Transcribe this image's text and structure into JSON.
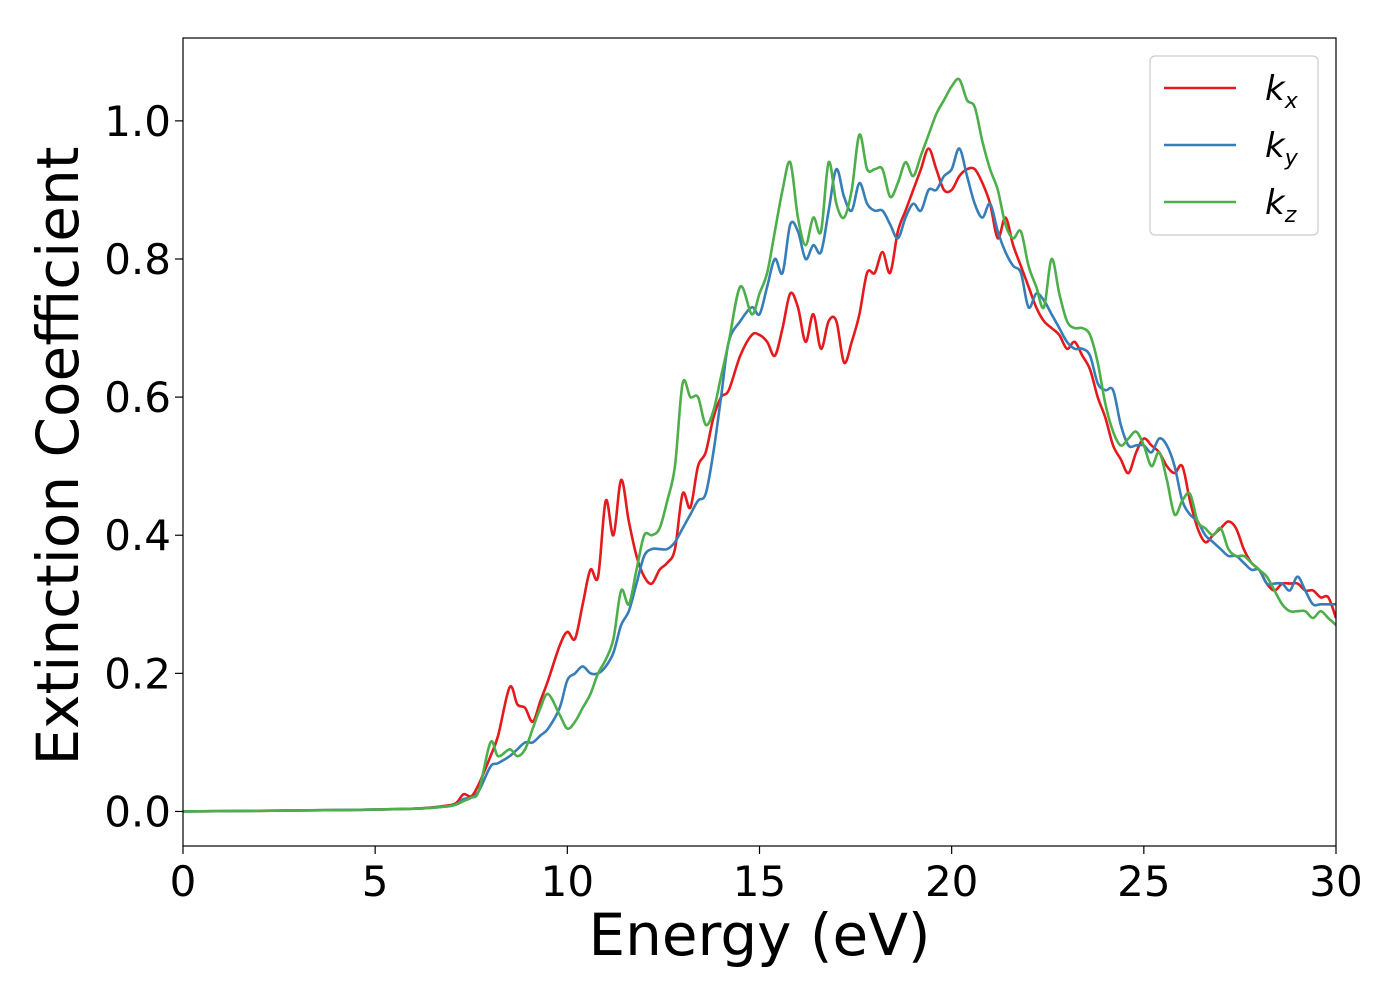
{
  "chart_data": {
    "type": "line",
    "title": "",
    "xlabel": "Energy (eV)",
    "ylabel": "Extinction Coefficient",
    "xlim": [
      0,
      30
    ],
    "ylim": [
      -0.05,
      1.12
    ],
    "xticks": [
      0,
      5,
      10,
      15,
      20,
      25,
      30
    ],
    "xtick_labels": [
      "0",
      "5",
      "10",
      "15",
      "20",
      "25",
      "30"
    ],
    "yticks": [
      0.0,
      0.2,
      0.4,
      0.6,
      0.8,
      1.0
    ],
    "ytick_labels": [
      "0.0",
      "0.2",
      "0.4",
      "0.6",
      "0.8",
      "1.0"
    ],
    "grid": false,
    "legend_position": "top-right",
    "series": [
      {
        "name": "k",
        "subscript": "x",
        "color": "#e41a1c",
        "x": [
          0,
          2,
          4,
          6,
          6.8,
          7.1,
          7.3,
          7.5,
          7.7,
          8.0,
          8.2,
          8.5,
          8.7,
          8.9,
          9.1,
          9.3,
          9.5,
          9.8,
          10.0,
          10.2,
          10.4,
          10.6,
          10.8,
          11.0,
          11.2,
          11.4,
          11.6,
          11.8,
          12.0,
          12.2,
          12.4,
          12.6,
          12.8,
          13.0,
          13.2,
          13.4,
          13.6,
          13.8,
          14.0,
          14.2,
          14.5,
          14.8,
          15.0,
          15.2,
          15.4,
          15.6,
          15.8,
          16.0,
          16.2,
          16.4,
          16.6,
          16.8,
          17.0,
          17.2,
          17.4,
          17.6,
          17.8,
          18.0,
          18.2,
          18.4,
          18.6,
          18.8,
          19.0,
          19.2,
          19.4,
          19.6,
          19.8,
          20.0,
          20.2,
          20.4,
          20.6,
          20.8,
          21.0,
          21.2,
          21.4,
          21.6,
          21.8,
          22.0,
          22.2,
          22.4,
          22.6,
          22.8,
          23.0,
          23.2,
          23.4,
          23.6,
          23.8,
          24.0,
          24.2,
          24.4,
          24.6,
          24.8,
          25.0,
          25.2,
          25.4,
          25.6,
          25.8,
          26.0,
          26.2,
          26.4,
          26.6,
          26.8,
          27.0,
          27.2,
          27.4,
          27.6,
          27.8,
          28.0,
          28.2,
          28.4,
          28.6,
          28.8,
          29.0,
          29.2,
          29.4,
          29.6,
          29.8,
          30.0
        ],
        "y": [
          0.0,
          0.001,
          0.002,
          0.004,
          0.008,
          0.012,
          0.025,
          0.022,
          0.04,
          0.08,
          0.11,
          0.18,
          0.155,
          0.15,
          0.13,
          0.16,
          0.19,
          0.24,
          0.26,
          0.25,
          0.3,
          0.35,
          0.34,
          0.45,
          0.4,
          0.48,
          0.42,
          0.37,
          0.34,
          0.33,
          0.35,
          0.36,
          0.38,
          0.46,
          0.44,
          0.5,
          0.52,
          0.57,
          0.6,
          0.61,
          0.66,
          0.69,
          0.69,
          0.68,
          0.66,
          0.7,
          0.75,
          0.73,
          0.68,
          0.72,
          0.67,
          0.71,
          0.71,
          0.65,
          0.68,
          0.72,
          0.78,
          0.78,
          0.81,
          0.78,
          0.84,
          0.87,
          0.9,
          0.93,
          0.96,
          0.93,
          0.9,
          0.9,
          0.92,
          0.93,
          0.93,
          0.91,
          0.88,
          0.83,
          0.86,
          0.82,
          0.79,
          0.76,
          0.73,
          0.71,
          0.7,
          0.69,
          0.67,
          0.68,
          0.66,
          0.64,
          0.6,
          0.57,
          0.53,
          0.51,
          0.49,
          0.52,
          0.54,
          0.53,
          0.52,
          0.5,
          0.49,
          0.5,
          0.45,
          0.41,
          0.39,
          0.4,
          0.41,
          0.42,
          0.41,
          0.38,
          0.36,
          0.35,
          0.33,
          0.32,
          0.33,
          0.33,
          0.33,
          0.32,
          0.32,
          0.31,
          0.31,
          0.28
        ]
      },
      {
        "name": "k",
        "subscript": "y",
        "color": "#377eb8",
        "x": [
          0,
          2,
          4,
          6,
          6.8,
          7.1,
          7.3,
          7.5,
          7.7,
          8.0,
          8.2,
          8.5,
          8.7,
          8.9,
          9.1,
          9.3,
          9.5,
          9.8,
          10.0,
          10.2,
          10.4,
          10.6,
          10.8,
          11.0,
          11.2,
          11.4,
          11.6,
          11.8,
          12.0,
          12.2,
          12.4,
          12.6,
          12.8,
          13.0,
          13.2,
          13.4,
          13.6,
          13.8,
          14.0,
          14.2,
          14.5,
          14.8,
          15.0,
          15.2,
          15.4,
          15.6,
          15.8,
          16.0,
          16.2,
          16.4,
          16.6,
          16.8,
          17.0,
          17.2,
          17.4,
          17.6,
          17.8,
          18.0,
          18.2,
          18.4,
          18.6,
          18.8,
          19.0,
          19.2,
          19.4,
          19.6,
          19.8,
          20.0,
          20.2,
          20.4,
          20.6,
          20.8,
          21.0,
          21.2,
          21.4,
          21.6,
          21.8,
          22.0,
          22.2,
          22.4,
          22.6,
          22.8,
          23.0,
          23.2,
          23.4,
          23.6,
          23.8,
          24.0,
          24.2,
          24.4,
          24.6,
          24.8,
          25.0,
          25.2,
          25.4,
          25.6,
          25.8,
          26.0,
          26.2,
          26.4,
          26.6,
          26.8,
          27.0,
          27.2,
          27.4,
          27.6,
          27.8,
          28.0,
          28.2,
          28.4,
          28.6,
          28.8,
          29.0,
          29.2,
          29.4,
          29.6,
          29.8,
          30.0
        ],
        "y": [
          0.0,
          0.001,
          0.002,
          0.004,
          0.007,
          0.01,
          0.018,
          0.02,
          0.03,
          0.065,
          0.07,
          0.08,
          0.09,
          0.1,
          0.1,
          0.11,
          0.12,
          0.15,
          0.19,
          0.2,
          0.21,
          0.2,
          0.2,
          0.21,
          0.23,
          0.27,
          0.29,
          0.33,
          0.37,
          0.38,
          0.38,
          0.38,
          0.39,
          0.41,
          0.43,
          0.45,
          0.46,
          0.52,
          0.6,
          0.68,
          0.71,
          0.73,
          0.72,
          0.76,
          0.8,
          0.78,
          0.85,
          0.84,
          0.8,
          0.82,
          0.81,
          0.87,
          0.93,
          0.89,
          0.87,
          0.91,
          0.88,
          0.87,
          0.87,
          0.85,
          0.83,
          0.86,
          0.88,
          0.87,
          0.9,
          0.9,
          0.92,
          0.93,
          0.96,
          0.92,
          0.88,
          0.86,
          0.88,
          0.84,
          0.81,
          0.79,
          0.78,
          0.73,
          0.75,
          0.74,
          0.72,
          0.7,
          0.68,
          0.67,
          0.67,
          0.66,
          0.62,
          0.61,
          0.61,
          0.56,
          0.53,
          0.53,
          0.53,
          0.52,
          0.54,
          0.53,
          0.5,
          0.45,
          0.43,
          0.42,
          0.4,
          0.39,
          0.38,
          0.37,
          0.37,
          0.36,
          0.35,
          0.35,
          0.33,
          0.33,
          0.33,
          0.32,
          0.34,
          0.32,
          0.3,
          0.3,
          0.3,
          0.3
        ]
      },
      {
        "name": "k",
        "subscript": "z",
        "color": "#4daf4a",
        "x": [
          0,
          2,
          4,
          6,
          6.8,
          7.1,
          7.3,
          7.5,
          7.7,
          8.0,
          8.2,
          8.5,
          8.7,
          8.9,
          9.1,
          9.3,
          9.5,
          9.8,
          10.0,
          10.2,
          10.4,
          10.6,
          10.8,
          11.0,
          11.2,
          11.4,
          11.6,
          11.8,
          12.0,
          12.2,
          12.4,
          12.6,
          12.8,
          13.0,
          13.2,
          13.4,
          13.6,
          13.8,
          14.0,
          14.2,
          14.5,
          14.8,
          15.0,
          15.2,
          15.4,
          15.6,
          15.8,
          16.0,
          16.2,
          16.4,
          16.6,
          16.8,
          17.0,
          17.2,
          17.4,
          17.6,
          17.8,
          18.0,
          18.2,
          18.4,
          18.6,
          18.8,
          19.0,
          19.2,
          19.4,
          19.6,
          19.8,
          20.0,
          20.2,
          20.4,
          20.6,
          20.8,
          21.0,
          21.2,
          21.4,
          21.6,
          21.8,
          22.0,
          22.2,
          22.4,
          22.6,
          22.8,
          23.0,
          23.2,
          23.4,
          23.6,
          23.8,
          24.0,
          24.2,
          24.4,
          24.6,
          24.8,
          25.0,
          25.2,
          25.4,
          25.6,
          25.8,
          26.0,
          26.2,
          26.4,
          26.6,
          26.8,
          27.0,
          27.2,
          27.4,
          27.6,
          27.8,
          28.0,
          28.2,
          28.4,
          28.6,
          28.8,
          29.0,
          29.2,
          29.4,
          29.6,
          29.8,
          30.0
        ],
        "y": [
          0.0,
          0.001,
          0.002,
          0.004,
          0.007,
          0.01,
          0.015,
          0.02,
          0.03,
          0.1,
          0.08,
          0.09,
          0.08,
          0.09,
          0.12,
          0.15,
          0.17,
          0.14,
          0.12,
          0.13,
          0.15,
          0.17,
          0.2,
          0.22,
          0.25,
          0.32,
          0.3,
          0.35,
          0.4,
          0.4,
          0.41,
          0.45,
          0.5,
          0.62,
          0.6,
          0.6,
          0.56,
          0.58,
          0.63,
          0.68,
          0.76,
          0.72,
          0.75,
          0.78,
          0.84,
          0.9,
          0.94,
          0.86,
          0.82,
          0.86,
          0.84,
          0.94,
          0.88,
          0.86,
          0.9,
          0.98,
          0.93,
          0.93,
          0.93,
          0.89,
          0.91,
          0.94,
          0.92,
          0.95,
          0.98,
          1.01,
          1.03,
          1.05,
          1.06,
          1.03,
          1.02,
          0.97,
          0.93,
          0.9,
          0.85,
          0.83,
          0.84,
          0.79,
          0.76,
          0.73,
          0.8,
          0.75,
          0.71,
          0.7,
          0.7,
          0.69,
          0.65,
          0.59,
          0.55,
          0.53,
          0.54,
          0.55,
          0.53,
          0.5,
          0.52,
          0.48,
          0.43,
          0.45,
          0.46,
          0.42,
          0.41,
          0.4,
          0.41,
          0.38,
          0.37,
          0.37,
          0.36,
          0.35,
          0.34,
          0.32,
          0.3,
          0.29,
          0.29,
          0.29,
          0.28,
          0.29,
          0.28,
          0.27
        ]
      }
    ]
  }
}
